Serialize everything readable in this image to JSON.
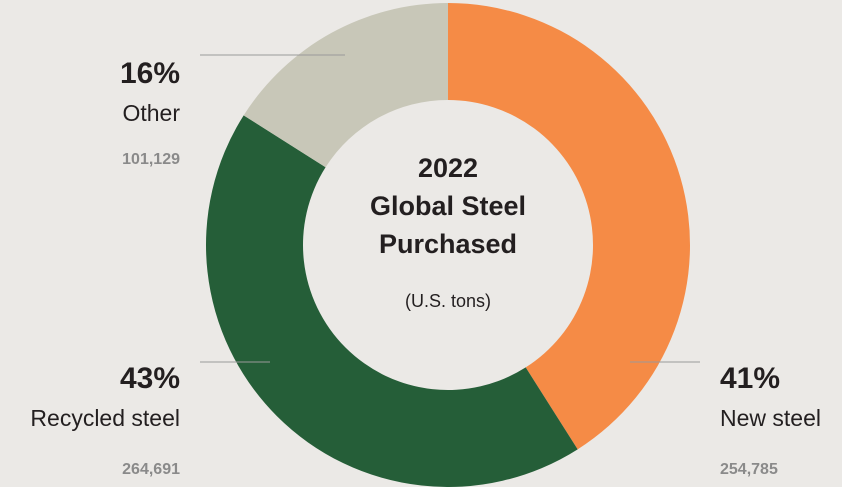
{
  "chart_data": {
    "type": "donut",
    "title_lines": [
      "2022",
      "Global Steel",
      "Purchased"
    ],
    "subtitle": "(U.S. tons)",
    "categories": [
      "New steel",
      "Recycled steel",
      "Other"
    ],
    "values": [
      41,
      43,
      16
    ],
    "value_labels": [
      "41%",
      "43%",
      "16%"
    ],
    "colors": [
      "#f58b46",
      "#255e38",
      "#c8c7b8"
    ],
    "tons": [
      254785,
      264691,
      101129
    ],
    "tons_labels": [
      "254,785",
      "264,691",
      "101,129"
    ]
  }
}
